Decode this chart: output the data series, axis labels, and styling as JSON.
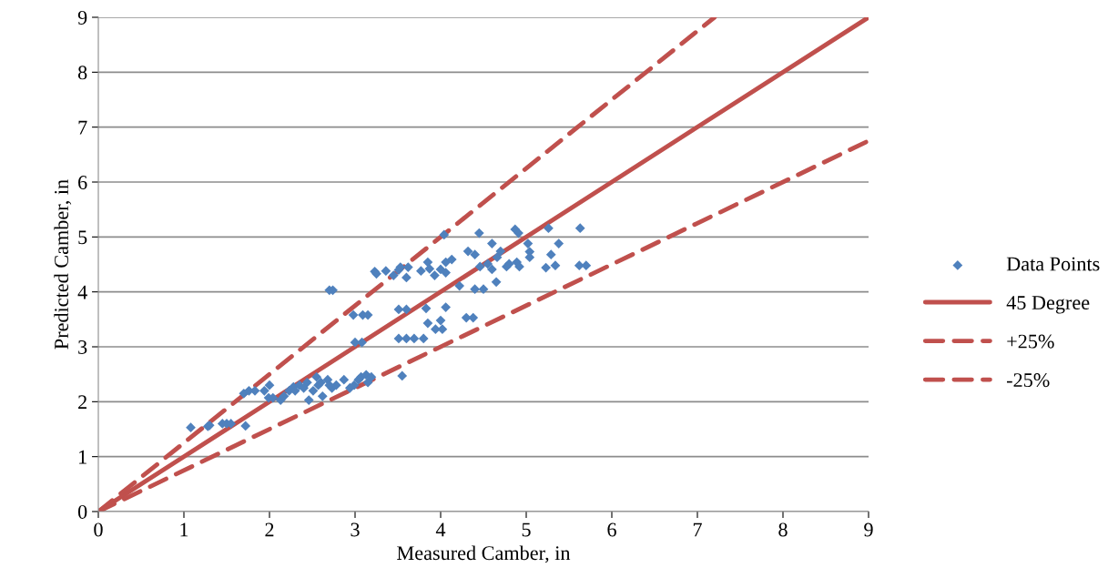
{
  "chart_data": {
    "type": "scatter",
    "xlabel": "Measured Camber, in",
    "ylabel": "Predicted Camber, in",
    "xlim": [
      0,
      9
    ],
    "ylim": [
      0,
      9
    ],
    "xticks": [
      0,
      1,
      2,
      3,
      4,
      5,
      6,
      7,
      8,
      9
    ],
    "yticks": [
      0,
      1,
      2,
      3,
      4,
      5,
      6,
      7,
      8,
      9
    ],
    "grid": "y",
    "legend": "right",
    "series": [
      {
        "name": "Data Points",
        "color": "#4f81bd",
        "marker": "diamond",
        "x": [
          1.08,
          1.28,
          1.3,
          1.45,
          1.5,
          1.55,
          1.72,
          1.7,
          1.76,
          1.83,
          1.94,
          2.0,
          1.99,
          2.04,
          2.13,
          2.17,
          2.23,
          2.28,
          2.35,
          2.44,
          2.51,
          2.46,
          2.57,
          2.62,
          2.68,
          2.73,
          2.78,
          2.87,
          2.94,
          2.99,
          3.04,
          3.07,
          3.15,
          2.55,
          2.3,
          2.4,
          2.6,
          2.7,
          2.98,
          3.09,
          3.15,
          3.0,
          3.08,
          3.13,
          3.19,
          2.7,
          2.74,
          3.23,
          3.25,
          3.36,
          3.45,
          3.51,
          3.53,
          3.62,
          3.6,
          3.51,
          3.6,
          3.51,
          3.6,
          3.69,
          3.8,
          3.55,
          3.83,
          3.85,
          3.94,
          4.02,
          4.0,
          4.06,
          3.77,
          3.85,
          3.87,
          3.93,
          4.0,
          4.04,
          4.06,
          4.13,
          4.06,
          4.22,
          4.3,
          4.38,
          4.32,
          4.4,
          4.45,
          4.4,
          4.5,
          4.46,
          4.55,
          4.6,
          4.6,
          4.66,
          4.65,
          4.7,
          4.77,
          4.8,
          4.87,
          4.91,
          4.89,
          4.92,
          5.02,
          5.04,
          5.04,
          5.23,
          5.26,
          5.29,
          5.34,
          5.38,
          5.63,
          5.62,
          5.7
        ],
        "values": [
          1.53,
          1.55,
          1.57,
          1.6,
          1.6,
          1.6,
          1.56,
          2.15,
          2.2,
          2.2,
          2.2,
          2.3,
          2.07,
          2.07,
          2.03,
          2.1,
          2.2,
          2.27,
          2.3,
          2.35,
          2.2,
          2.03,
          2.3,
          2.1,
          2.4,
          2.25,
          2.3,
          2.4,
          2.25,
          2.3,
          2.4,
          2.45,
          2.35,
          2.45,
          2.2,
          2.25,
          2.35,
          2.3,
          3.58,
          3.58,
          3.58,
          3.08,
          3.08,
          2.49,
          2.45,
          4.03,
          4.03,
          4.37,
          4.33,
          4.38,
          4.3,
          4.4,
          4.45,
          4.45,
          4.26,
          3.68,
          3.68,
          3.15,
          3.15,
          3.15,
          3.15,
          2.47,
          3.7,
          3.43,
          3.32,
          3.32,
          3.48,
          3.72,
          4.38,
          4.54,
          4.42,
          4.3,
          4.41,
          5.04,
          4.54,
          4.59,
          4.35,
          4.11,
          3.53,
          3.53,
          4.74,
          4.68,
          5.07,
          4.05,
          4.05,
          4.46,
          4.51,
          4.88,
          4.41,
          4.63,
          4.18,
          4.74,
          4.46,
          4.51,
          5.14,
          5.07,
          4.54,
          4.46,
          4.88,
          4.73,
          4.63,
          4.44,
          5.16,
          4.68,
          4.48,
          4.88,
          5.16,
          4.48,
          4.48
        ]
      },
      {
        "name": "45 Degree",
        "type": "line",
        "color": "#c0504d",
        "line_style": "solid",
        "x": [
          0,
          9
        ],
        "values": [
          0,
          9
        ]
      },
      {
        "name": "+25%",
        "type": "line",
        "color": "#c0504d",
        "line_style": "dashed",
        "x": [
          0,
          7.2
        ],
        "values": [
          0,
          9
        ]
      },
      {
        "name": "-25%",
        "type": "line",
        "color": "#c0504d",
        "line_style": "dashed",
        "x": [
          0,
          9
        ],
        "values": [
          0,
          6.75
        ]
      }
    ]
  }
}
